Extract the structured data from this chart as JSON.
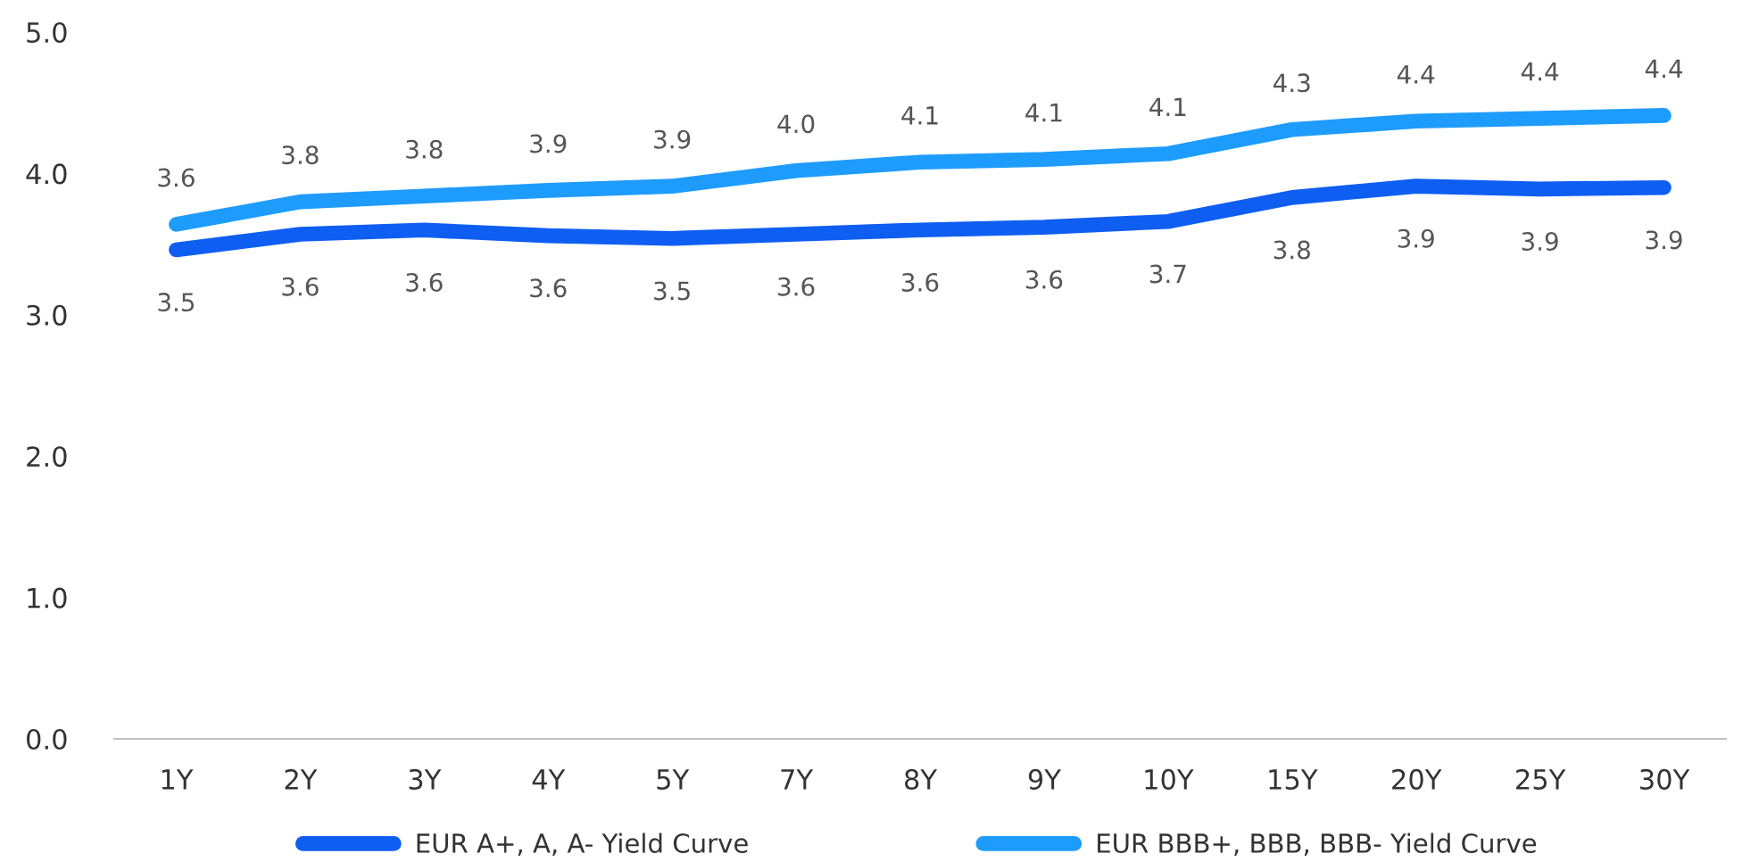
{
  "chart_data": {
    "type": "line",
    "categories": [
      "1Y",
      "2Y",
      "3Y",
      "4Y",
      "5Y",
      "7Y",
      "8Y",
      "9Y",
      "10Y",
      "15Y",
      "20Y",
      "25Y",
      "30Y"
    ],
    "series": [
      {
        "name": "EUR A+, A, A- Yield Curve",
        "color": "#0f5ef2",
        "values": [
          3.46,
          3.57,
          3.6,
          3.56,
          3.54,
          3.57,
          3.6,
          3.62,
          3.66,
          3.83,
          3.91,
          3.89,
          3.9
        ],
        "value_labels": [
          "3.5",
          "3.6",
          "3.6",
          "3.6",
          "3.5",
          "3.6",
          "3.6",
          "3.6",
          "3.7",
          "3.8",
          "3.9",
          "3.9",
          "3.9"
        ]
      },
      {
        "name": "EUR BBB+, BBB, BBB- Yield Curve",
        "color": "#1e9cfd",
        "values": [
          3.64,
          3.8,
          3.84,
          3.88,
          3.91,
          4.02,
          4.08,
          4.1,
          4.14,
          4.31,
          4.37,
          4.39,
          4.41
        ],
        "value_labels": [
          "3.6",
          "3.8",
          "3.8",
          "3.9",
          "3.9",
          "4.0",
          "4.1",
          "4.1",
          "4.1",
          "4.3",
          "4.4",
          "4.4",
          "4.4"
        ]
      }
    ],
    "ylim": [
      0,
      5
    ],
    "yticks": [
      {
        "value": 0,
        "label": "0.0"
      },
      {
        "value": 1,
        "label": "1.0"
      },
      {
        "value": 2,
        "label": "2.0"
      },
      {
        "value": 3,
        "label": "3.0"
      },
      {
        "value": 4,
        "label": "4.0"
      },
      {
        "value": 5,
        "label": "5.0"
      }
    ],
    "grid": false,
    "legend": "bottom",
    "marker": "none",
    "line_style": "solid"
  }
}
